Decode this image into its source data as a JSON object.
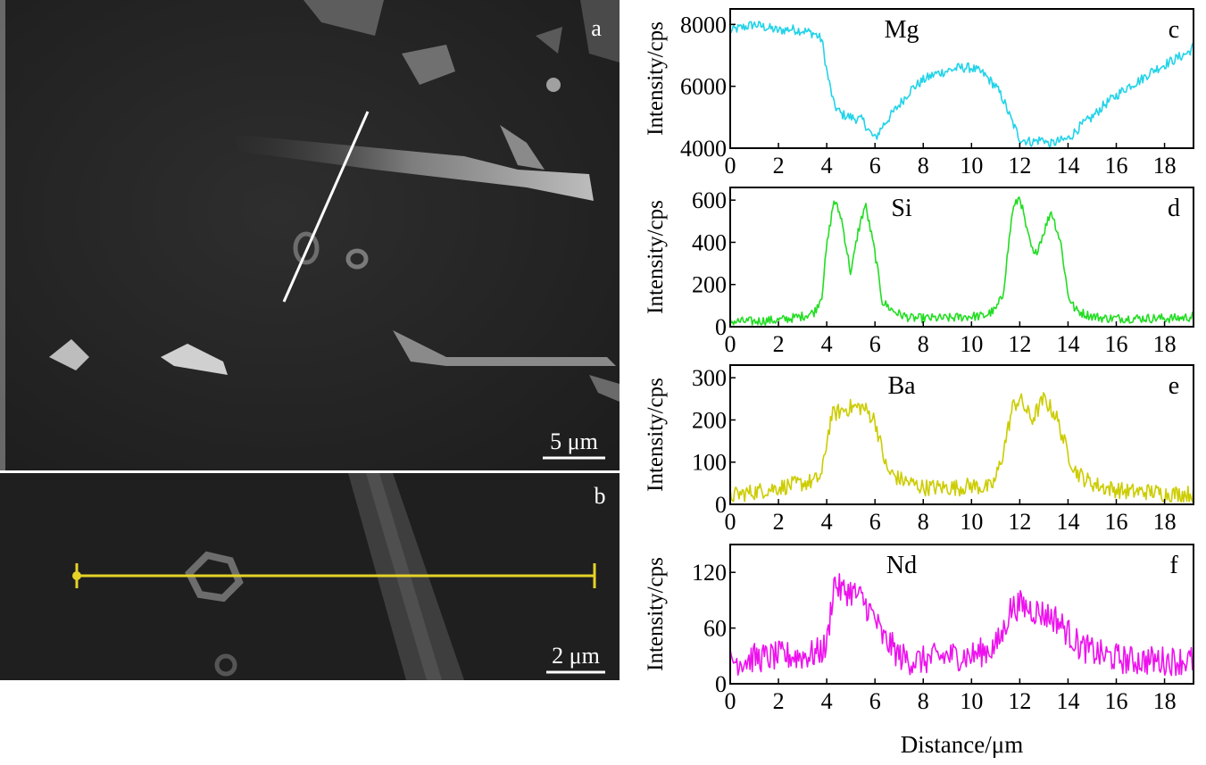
{
  "micrographs": {
    "a": {
      "label": "a",
      "scalebar": "5 μm"
    },
    "b": {
      "label": "b",
      "scalebar": "2 μm"
    }
  },
  "colors": {
    "Mg": "#22d3e8",
    "Si": "#22dd22",
    "Ba": "#cccc00",
    "Nd": "#ee11ee",
    "linescan": "#e6d327",
    "sem_line": "#ffffff"
  },
  "chart_data": [
    {
      "panel": "c",
      "type": "line",
      "element": "Mg",
      "xlabel": "",
      "ylabel": "Intensity/cps",
      "xlim": [
        0,
        19.2
      ],
      "ylim": [
        4000,
        8500
      ],
      "xticks": [
        0,
        2,
        4,
        6,
        8,
        10,
        12,
        14,
        16,
        18
      ],
      "yticks": [
        4000,
        6000,
        8000
      ],
      "series": [
        {
          "color": "#22d3e8",
          "x": [
            0,
            0.5,
            1,
            1.5,
            2,
            2.5,
            3,
            3.5,
            3.8,
            4,
            4.3,
            4.6,
            5,
            5.5,
            5.8,
            6,
            6.3,
            6.7,
            7,
            7.5,
            8,
            8.5,
            9,
            9.5,
            10,
            10.5,
            11,
            11.3,
            11.6,
            12,
            12.5,
            13,
            13.2,
            13.5,
            14,
            14.5,
            15,
            15.5,
            16,
            16.5,
            17,
            17.5,
            18,
            18.5,
            19,
            19.2
          ],
          "y": [
            7800,
            7900,
            8000,
            7900,
            7800,
            7850,
            7800,
            7700,
            7500,
            6500,
            5400,
            5100,
            5000,
            4900,
            4500,
            4300,
            4700,
            5100,
            5400,
            5900,
            6200,
            6400,
            6500,
            6600,
            6600,
            6400,
            6000,
            5600,
            5000,
            4300,
            4200,
            4300,
            4100,
            4200,
            4300,
            4700,
            5000,
            5400,
            5700,
            6000,
            6200,
            6500,
            6700,
            6900,
            7100,
            7300
          ],
          "noise": 160
        }
      ]
    },
    {
      "panel": "d",
      "type": "line",
      "element": "Si",
      "xlabel": "",
      "ylabel": "Intensity/cps",
      "xlim": [
        0,
        19.2
      ],
      "ylim": [
        0,
        660
      ],
      "xticks": [
        0,
        2,
        4,
        6,
        8,
        10,
        12,
        14,
        16,
        18
      ],
      "yticks": [
        0,
        200,
        400,
        600
      ],
      "series": [
        {
          "color": "#22dd22",
          "x": [
            0,
            0.5,
            1,
            1.5,
            2,
            2.5,
            3,
            3.5,
            3.8,
            4,
            4.3,
            4.6,
            5,
            5.3,
            5.6,
            6,
            6.3,
            6.7,
            7,
            7.5,
            8,
            8.5,
            9,
            9.5,
            10,
            10.5,
            11,
            11.3,
            11.7,
            12,
            12.3,
            12.6,
            13,
            13.3,
            13.7,
            14,
            14.3,
            14.7,
            15,
            15.5,
            16,
            16.5,
            17,
            17.5,
            18,
            18.5,
            19,
            19.2
          ],
          "y": [
            25,
            25,
            25,
            30,
            30,
            40,
            50,
            70,
            150,
            380,
            600,
            520,
            250,
            450,
            580,
            350,
            120,
            80,
            60,
            40,
            40,
            40,
            40,
            45,
            50,
            50,
            80,
            150,
            550,
            620,
            450,
            330,
            450,
            550,
            400,
            150,
            80,
            60,
            50,
            40,
            40,
            40,
            40,
            40,
            40,
            40,
            45,
            50
          ],
          "noise": 22
        }
      ]
    },
    {
      "panel": "e",
      "type": "line",
      "element": "Ba",
      "xlabel": "",
      "ylabel": "Intensity/cps",
      "xlim": [
        0,
        19.2
      ],
      "ylim": [
        0,
        330
      ],
      "xticks": [
        0,
        2,
        4,
        6,
        8,
        10,
        12,
        14,
        16,
        18
      ],
      "yticks": [
        0,
        100,
        200,
        300
      ],
      "series": [
        {
          "color": "#cccc00",
          "x": [
            0,
            0.5,
            1,
            1.5,
            2,
            2.5,
            3,
            3.5,
            3.8,
            4,
            4.2,
            4.5,
            5,
            5.5,
            6,
            6.2,
            6.5,
            7,
            7.5,
            8,
            8.5,
            9,
            9.5,
            10,
            10.5,
            10.8,
            11,
            11.3,
            11.7,
            12,
            12.5,
            13,
            13.5,
            14,
            14.3,
            14.7,
            15,
            15.5,
            16,
            16.5,
            17,
            17.5,
            18,
            18.5,
            19,
            19.2
          ],
          "y": [
            20,
            25,
            30,
            35,
            40,
            45,
            50,
            55,
            70,
            150,
            210,
            220,
            230,
            230,
            200,
            150,
            80,
            60,
            50,
            40,
            40,
            40,
            40,
            45,
            40,
            40,
            60,
            120,
            230,
            250,
            200,
            250,
            210,
            120,
            80,
            60,
            50,
            40,
            35,
            30,
            30,
            30,
            25,
            25,
            25,
            25
          ],
          "noise": 20
        }
      ]
    },
    {
      "panel": "f",
      "type": "line",
      "element": "Nd",
      "xlabel": "Distance/μm",
      "ylabel": "Intensity/cps",
      "xlim": [
        0,
        19.2
      ],
      "ylim": [
        0,
        150
      ],
      "xticks": [
        0,
        2,
        4,
        6,
        8,
        10,
        12,
        14,
        16,
        18
      ],
      "yticks": [
        0,
        60,
        120
      ],
      "series": [
        {
          "color": "#ee11ee",
          "x": [
            0,
            0.5,
            1,
            1.5,
            2,
            2.5,
            3,
            3.5,
            4,
            4.3,
            4.6,
            5,
            5.5,
            6,
            6.3,
            6.7,
            7,
            7.5,
            8,
            8.5,
            9,
            9.5,
            10,
            10.5,
            11,
            11.3,
            11.6,
            12,
            12.5,
            13,
            13.5,
            14,
            14.5,
            15,
            15.5,
            16,
            16.5,
            17,
            17.5,
            18,
            18.5,
            19,
            19.2
          ],
          "y": [
            25,
            25,
            28,
            28,
            30,
            30,
            30,
            32,
            40,
            110,
            100,
            100,
            90,
            70,
            50,
            40,
            30,
            25,
            25,
            28,
            30,
            30,
            30,
            35,
            40,
            55,
            80,
            85,
            80,
            75,
            70,
            55,
            40,
            35,
            30,
            28,
            25,
            25,
            25,
            25,
            25,
            25,
            25
          ],
          "noise": 16
        }
      ]
    }
  ]
}
